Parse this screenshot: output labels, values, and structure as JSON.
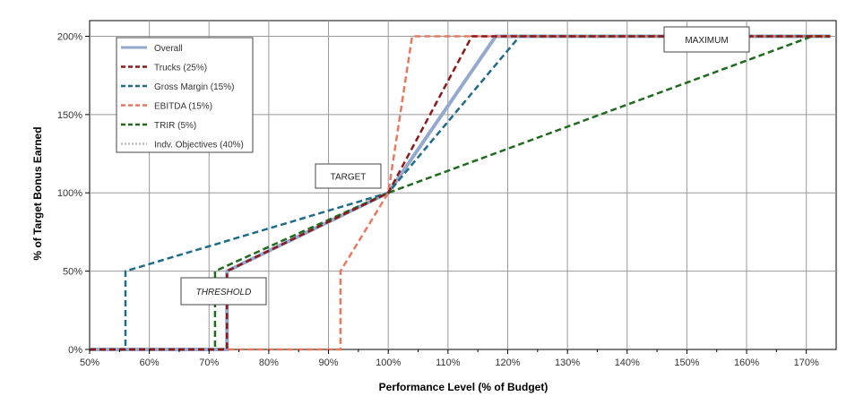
{
  "chart_data": {
    "type": "line",
    "xlabel": "Performance Level  (% of Budget)",
    "ylabel": "% of Target Bonus Earned",
    "xlim": [
      50,
      175
    ],
    "ylim": [
      0,
      210
    ],
    "x_ticks": [
      50,
      60,
      70,
      80,
      90,
      100,
      110,
      120,
      130,
      140,
      150,
      160,
      170
    ],
    "x_tick_labels": [
      "50%",
      "60%",
      "70%",
      "80%",
      "90%",
      "100%",
      "110%",
      "120%",
      "130%",
      "140%",
      "150%",
      "160%",
      "170%"
    ],
    "y_ticks": [
      0,
      50,
      100,
      150,
      200
    ],
    "y_tick_labels": [
      "0%",
      "50%",
      "100%",
      "150%",
      "200%"
    ],
    "grid": true,
    "legend_position": "top-left",
    "series": [
      {
        "name": "Overall",
        "color": "#95A9CF",
        "style": "solid",
        "x": [
          50,
          73,
          73,
          100,
          118,
          174
        ],
        "y": [
          0,
          0,
          50,
          100,
          200,
          200
        ]
      },
      {
        "name": "Trucks (25%)",
        "color": "#8B1A1A",
        "style": "dashed",
        "x": [
          50,
          73,
          73,
          100,
          114,
          174
        ],
        "y": [
          0,
          0,
          50,
          100,
          200,
          200
        ]
      },
      {
        "name": "Gross Margin (15%)",
        "color": "#1F6B8C",
        "style": "dashed",
        "x": [
          50,
          56,
          56,
          100,
          122,
          174
        ],
        "y": [
          0,
          0,
          50,
          100,
          200,
          200
        ]
      },
      {
        "name": "EBITDA (15%)",
        "color": "#E8795E",
        "style": "dashed",
        "x": [
          50,
          92,
          92,
          100,
          104,
          174
        ],
        "y": [
          0,
          0,
          50,
          100,
          200,
          200
        ]
      },
      {
        "name": "TRIR (5%)",
        "color": "#1E6B1E",
        "style": "dashed",
        "x": [
          50,
          71,
          71,
          100,
          171,
          174
        ],
        "y": [
          0,
          0,
          50,
          100,
          200,
          200
        ]
      },
      {
        "name": "Indv. Objectives (40%)",
        "color": "#BBBBBB",
        "style": "dotted",
        "x": [],
        "y": []
      }
    ],
    "annotations": [
      {
        "text": "TARGET",
        "x": 100,
        "y": 100
      },
      {
        "text": "THRESHOLD",
        "x": 73,
        "y": 50
      },
      {
        "text": "MAXIMUM",
        "x": 150,
        "y": 200
      }
    ]
  }
}
